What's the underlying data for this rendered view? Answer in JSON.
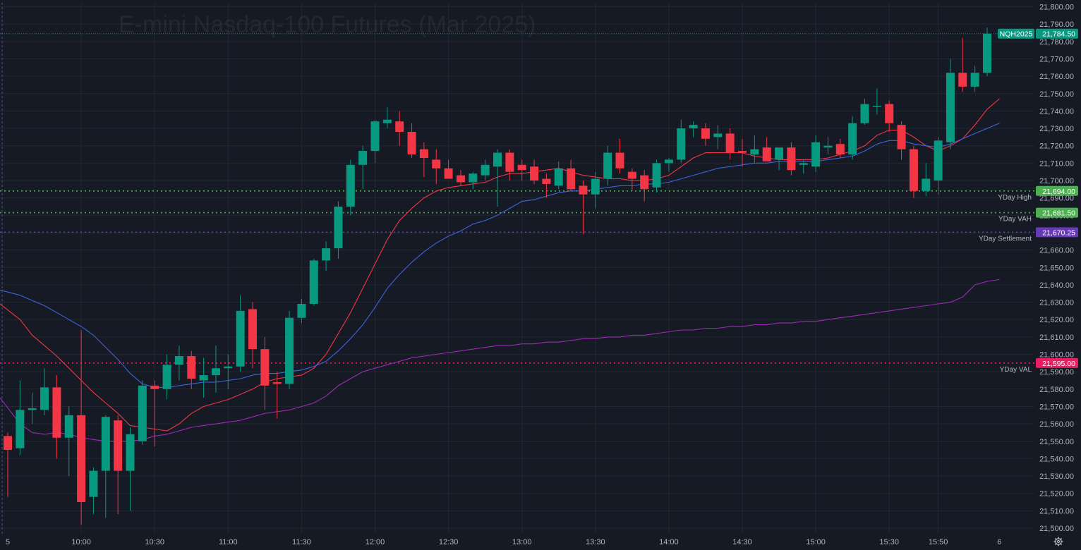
{
  "chart_data": {
    "type": "candlestick",
    "title": "E-mini Nasdaq-100 Futures (Mar 2025)",
    "symbol": "NQH2025",
    "last_price": 21784.5,
    "last_price_label": "21,784.50",
    "ylim": [
      21498,
      21804
    ],
    "y_ticks": [
      21500,
      21510,
      21520,
      21530,
      21540,
      21550,
      21560,
      21570,
      21580,
      21590,
      21600,
      21610,
      21620,
      21630,
      21640,
      21650,
      21660,
      21670,
      21680,
      21690,
      21700,
      21710,
      21720,
      21730,
      21740,
      21750,
      21760,
      21770,
      21780,
      21790,
      21800
    ],
    "y_tick_labels": [
      "21,500.00",
      "21,510.00",
      "21,520.00",
      "21,530.00",
      "21,540.00",
      "21,550.00",
      "21,560.00",
      "21,570.00",
      "21,580.00",
      "21,590.00",
      "21,600.00",
      "21,610.00",
      "21,620.00",
      "21,630.00",
      "21,640.00",
      "21,650.00",
      "21,660.00",
      "21,670.00",
      "21,680.00",
      "21,690.00",
      "21,700.00",
      "21,710.00",
      "21,720.00",
      "21,730.00",
      "21,740.00",
      "21,750.00",
      "21,760.00",
      "21,770.00",
      "21,780.00",
      "21,790.00",
      "21,800.00"
    ],
    "bar_interval_minutes": 5,
    "x_ticks": [
      {
        "bar": 0,
        "label": "5"
      },
      {
        "bar": 6,
        "label": "10:00"
      },
      {
        "bar": 12,
        "label": "10:30"
      },
      {
        "bar": 18,
        "label": "11:00"
      },
      {
        "bar": 24,
        "label": "11:30"
      },
      {
        "bar": 30,
        "label": "12:00"
      },
      {
        "bar": 36,
        "label": "12:30"
      },
      {
        "bar": 42,
        "label": "13:00"
      },
      {
        "bar": 48,
        "label": "13:30"
      },
      {
        "bar": 54,
        "label": "14:00"
      },
      {
        "bar": 60,
        "label": "14:30"
      },
      {
        "bar": 66,
        "label": "15:00"
      },
      {
        "bar": 72,
        "label": "15:30"
      },
      {
        "bar": 76,
        "label": "15:50"
      },
      {
        "bar": 81,
        "label": "6"
      }
    ],
    "candles": [
      {
        "o": 21553,
        "h": 21555,
        "l": 21518,
        "c": 21545
      },
      {
        "o": 21546,
        "h": 21585,
        "l": 21542,
        "c": 21568
      },
      {
        "o": 21568,
        "h": 21578,
        "l": 21560,
        "c": 21569
      },
      {
        "o": 21568,
        "h": 21592,
        "l": 21565,
        "c": 21581
      },
      {
        "o": 21581,
        "h": 21588,
        "l": 21540,
        "c": 21552
      },
      {
        "o": 21552,
        "h": 21570,
        "l": 21530,
        "c": 21565
      },
      {
        "o": 21565,
        "h": 21614,
        "l": 21502,
        "c": 21515
      },
      {
        "o": 21518,
        "h": 21535,
        "l": 21508,
        "c": 21533
      },
      {
        "o": 21533,
        "h": 21565,
        "l": 21506,
        "c": 21564
      },
      {
        "o": 21562,
        "h": 21565,
        "l": 21508,
        "c": 21533
      },
      {
        "o": 21533,
        "h": 21558,
        "l": 21510,
        "c": 21554
      },
      {
        "o": 21550,
        "h": 21585,
        "l": 21548,
        "c": 21582
      },
      {
        "o": 21582,
        "h": 21585,
        "l": 21547,
        "c": 21580
      },
      {
        "o": 21580,
        "h": 21600,
        "l": 21574,
        "c": 21594
      },
      {
        "o": 21594,
        "h": 21605,
        "l": 21585,
        "c": 21599
      },
      {
        "o": 21599,
        "h": 21602,
        "l": 21580,
        "c": 21586
      },
      {
        "o": 21585,
        "h": 21598,
        "l": 21575,
        "c": 21588
      },
      {
        "o": 21588,
        "h": 21605,
        "l": 21578,
        "c": 21592
      },
      {
        "o": 21592,
        "h": 21600,
        "l": 21580,
        "c": 21593
      },
      {
        "o": 21593,
        "h": 21634,
        "l": 21590,
        "c": 21625
      },
      {
        "o": 21626,
        "h": 21630,
        "l": 21592,
        "c": 21603
      },
      {
        "o": 21603,
        "h": 21610,
        "l": 21568,
        "c": 21582
      },
      {
        "o": 21584,
        "h": 21590,
        "l": 21563,
        "c": 21583
      },
      {
        "o": 21583,
        "h": 21625,
        "l": 21580,
        "c": 21621
      },
      {
        "o": 21621,
        "h": 21632,
        "l": 21618,
        "c": 21629
      },
      {
        "o": 21629,
        "h": 21655,
        "l": 21628,
        "c": 21654
      },
      {
        "o": 21654,
        "h": 21665,
        "l": 21648,
        "c": 21661
      },
      {
        "o": 21661,
        "h": 21688,
        "l": 21655,
        "c": 21685
      },
      {
        "o": 21685,
        "h": 21712,
        "l": 21680,
        "c": 21709
      },
      {
        "o": 21709,
        "h": 21720,
        "l": 21695,
        "c": 21717
      },
      {
        "o": 21717,
        "h": 21735,
        "l": 21710,
        "c": 21734
      },
      {
        "o": 21733,
        "h": 21742,
        "l": 21730,
        "c": 21735
      },
      {
        "o": 21734,
        "h": 21740,
        "l": 21720,
        "c": 21728
      },
      {
        "o": 21728,
        "h": 21733,
        "l": 21713,
        "c": 21715
      },
      {
        "o": 21718,
        "h": 21722,
        "l": 21702,
        "c": 21713
      },
      {
        "o": 21712,
        "h": 21718,
        "l": 21698,
        "c": 21707
      },
      {
        "o": 21707,
        "h": 21712,
        "l": 21701,
        "c": 21701
      },
      {
        "o": 21703,
        "h": 21706,
        "l": 21697,
        "c": 21699
      },
      {
        "o": 21699,
        "h": 21705,
        "l": 21695,
        "c": 21704
      },
      {
        "o": 21703,
        "h": 21712,
        "l": 21700,
        "c": 21709
      },
      {
        "o": 21708,
        "h": 21718,
        "l": 21685,
        "c": 21716
      },
      {
        "o": 21716,
        "h": 21718,
        "l": 21700,
        "c": 21705
      },
      {
        "o": 21709,
        "h": 21712,
        "l": 21700,
        "c": 21706
      },
      {
        "o": 21708,
        "h": 21712,
        "l": 21698,
        "c": 21700
      },
      {
        "o": 21701,
        "h": 21704,
        "l": 21690,
        "c": 21698
      },
      {
        "o": 21697,
        "h": 21711,
        "l": 21695,
        "c": 21707
      },
      {
        "o": 21707,
        "h": 21712,
        "l": 21694,
        "c": 21695
      },
      {
        "o": 21697,
        "h": 21700,
        "l": 21669,
        "c": 21692
      },
      {
        "o": 21692,
        "h": 21705,
        "l": 21684,
        "c": 21701
      },
      {
        "o": 21701,
        "h": 21720,
        "l": 21697,
        "c": 21716
      },
      {
        "o": 21716,
        "h": 21724,
        "l": 21704,
        "c": 21707
      },
      {
        "o": 21705,
        "h": 21707,
        "l": 21694,
        "c": 21701
      },
      {
        "o": 21703,
        "h": 21706,
        "l": 21688,
        "c": 21695
      },
      {
        "o": 21696,
        "h": 21712,
        "l": 21693,
        "c": 21710
      },
      {
        "o": 21710,
        "h": 21713,
        "l": 21705,
        "c": 21712
      },
      {
        "o": 21712,
        "h": 21735,
        "l": 21710,
        "c": 21730
      },
      {
        "o": 21730,
        "h": 21734,
        "l": 21725,
        "c": 21732
      },
      {
        "o": 21730,
        "h": 21733,
        "l": 21720,
        "c": 21724
      },
      {
        "o": 21725,
        "h": 21732,
        "l": 21718,
        "c": 21727
      },
      {
        "o": 21727,
        "h": 21730,
        "l": 21712,
        "c": 21716
      },
      {
        "o": 21717,
        "h": 21724,
        "l": 21708,
        "c": 21716
      },
      {
        "o": 21715,
        "h": 21726,
        "l": 21710,
        "c": 21718
      },
      {
        "o": 21719,
        "h": 21725,
        "l": 21712,
        "c": 21711
      },
      {
        "o": 21712,
        "h": 21716,
        "l": 21706,
        "c": 21719
      },
      {
        "o": 21719,
        "h": 21722,
        "l": 21703,
        "c": 21706
      },
      {
        "o": 21709,
        "h": 21712,
        "l": 21704,
        "c": 21710
      },
      {
        "o": 21708,
        "h": 21726,
        "l": 21705,
        "c": 21722
      },
      {
        "o": 21719,
        "h": 21725,
        "l": 21715,
        "c": 21720
      },
      {
        "o": 21721,
        "h": 21724,
        "l": 21713,
        "c": 21715
      },
      {
        "o": 21715,
        "h": 21737,
        "l": 21712,
        "c": 21733
      },
      {
        "o": 21733,
        "h": 21747,
        "l": 21732,
        "c": 21744
      },
      {
        "o": 21743,
        "h": 21753,
        "l": 21738,
        "c": 21743
      },
      {
        "o": 21744,
        "h": 21746,
        "l": 21728,
        "c": 21733
      },
      {
        "o": 21732,
        "h": 21734,
        "l": 21712,
        "c": 21718
      },
      {
        "o": 21718,
        "h": 21720,
        "l": 21690,
        "c": 21694
      },
      {
        "o": 21694,
        "h": 21710,
        "l": 21691,
        "c": 21701
      },
      {
        "o": 21700,
        "h": 21725,
        "l": 21692,
        "c": 21723
      },
      {
        "o": 21722,
        "h": 21770,
        "l": 21718,
        "c": 21762
      },
      {
        "o": 21762,
        "h": 21782,
        "l": 21751,
        "c": 21754
      },
      {
        "o": 21754,
        "h": 21766,
        "l": 21751,
        "c": 21762
      },
      {
        "o": 21762,
        "h": 21788,
        "l": 21760,
        "c": 21784.5
      }
    ],
    "series": [
      {
        "name": "",
        "color": "#f23645",
        "values": [
          21629,
          21620,
          21611,
          21605,
          21599,
          21592,
          21585,
          21578,
          21572,
          21566,
          21559,
          21558,
          21557,
          21556,
          21560,
          21566,
          21570,
          21572,
          21574,
          21577,
          21580,
          21584,
          21586,
          21587,
          21588,
          21592,
          21600,
          21612,
          21624,
          21638,
          21652,
          21666,
          21677,
          21684,
          21690,
          21694,
          21696,
          21697,
          21698,
          21699,
          21702,
          21704,
          21704,
          21705,
          21706,
          21707,
          21705,
          21703,
          21702,
          21701,
          21701,
          21700,
          21700,
          21701,
          21703,
          21708,
          21713,
          21716,
          21716,
          21716,
          21716,
          21714,
          21713,
          21712,
          21712,
          21712,
          21712,
          21713,
          21715,
          21717,
          21720,
          21726,
          21729,
          21729,
          21725,
          21720,
          21717,
          21720,
          21724,
          21732,
          21741,
          21747
        ]
      },
      {
        "name": "",
        "color": "#3d64d9",
        "values": [
          21637,
          21634,
          21631,
          21628,
          21624,
          21620,
          21616,
          21611,
          21604,
          21597,
          21589,
          21583,
          21581,
          21581,
          21582,
          21583,
          21584,
          21584,
          21585,
          21586,
          21588,
          21589,
          21589,
          21590,
          21591,
          21593,
          21596,
          21602,
          21609,
          21617,
          21627,
          21638,
          21646,
          21653,
          21659,
          21664,
          21668,
          21671,
          21675,
          21677,
          21680,
          21684,
          21688,
          21689,
          21691,
          21693,
          21694,
          21694,
          21695,
          21696,
          21697,
          21697,
          21698,
          21698,
          21699,
          21701,
          21703,
          21705,
          21707,
          21708,
          21709,
          21710,
          21710,
          21711,
          21711,
          21711,
          21711,
          21712,
          21713,
          21714,
          21717,
          21721,
          21723,
          21723,
          21721,
          21720,
          21719,
          21721,
          21724,
          21727,
          21730,
          21733
        ]
      },
      {
        "name": "",
        "color": "#9b2bb3",
        "values": [
          21575,
          21560,
          21555,
          21554,
          21555,
          21554,
          21552,
          21551,
          21550,
          21550,
          21550,
          21551,
          21553,
          21554,
          21556,
          21558,
          21559,
          21560,
          21561,
          21562,
          21564,
          21566,
          21567,
          21568,
          21570,
          21572,
          21576,
          21582,
          21586,
          21590,
          21592,
          21594,
          21596,
          21598,
          21599,
          21600,
          21601,
          21602,
          21603,
          21604,
          21605,
          21605,
          21606,
          21606,
          21607,
          21607,
          21608,
          21609,
          21609,
          21610,
          21610,
          21611,
          21611,
          21612,
          21613,
          21614,
          21614,
          21615,
          21615,
          21616,
          21616,
          21617,
          21617,
          21618,
          21618,
          21619,
          21619,
          21620,
          21621,
          21622,
          21623,
          21624,
          21625,
          21626,
          21627,
          21628,
          21629,
          21630,
          21633,
          21640,
          21642,
          21643
        ]
      }
    ],
    "levels": [
      {
        "name": "YDay High",
        "value": 21694.0,
        "label": "21,694.00",
        "color": "#4caf50"
      },
      {
        "name": "YDay VAH",
        "value": 21681.5,
        "label": "21,681.50",
        "color": "#4caf50"
      },
      {
        "name": "YDay Settlement",
        "value": 21670.25,
        "label": "21,670.25",
        "color": "#673ab7"
      },
      {
        "name": "YDay VAL",
        "value": 21595.0,
        "label": "21,595.00",
        "color": "#e91e63"
      }
    ],
    "colors": {
      "background": "#161a25",
      "up": "#089981",
      "down": "#f23645",
      "grid": "#232733",
      "text": "#b2b5be",
      "last_price": "#089981"
    },
    "grid": true,
    "settings_icon": "gear-icon"
  }
}
